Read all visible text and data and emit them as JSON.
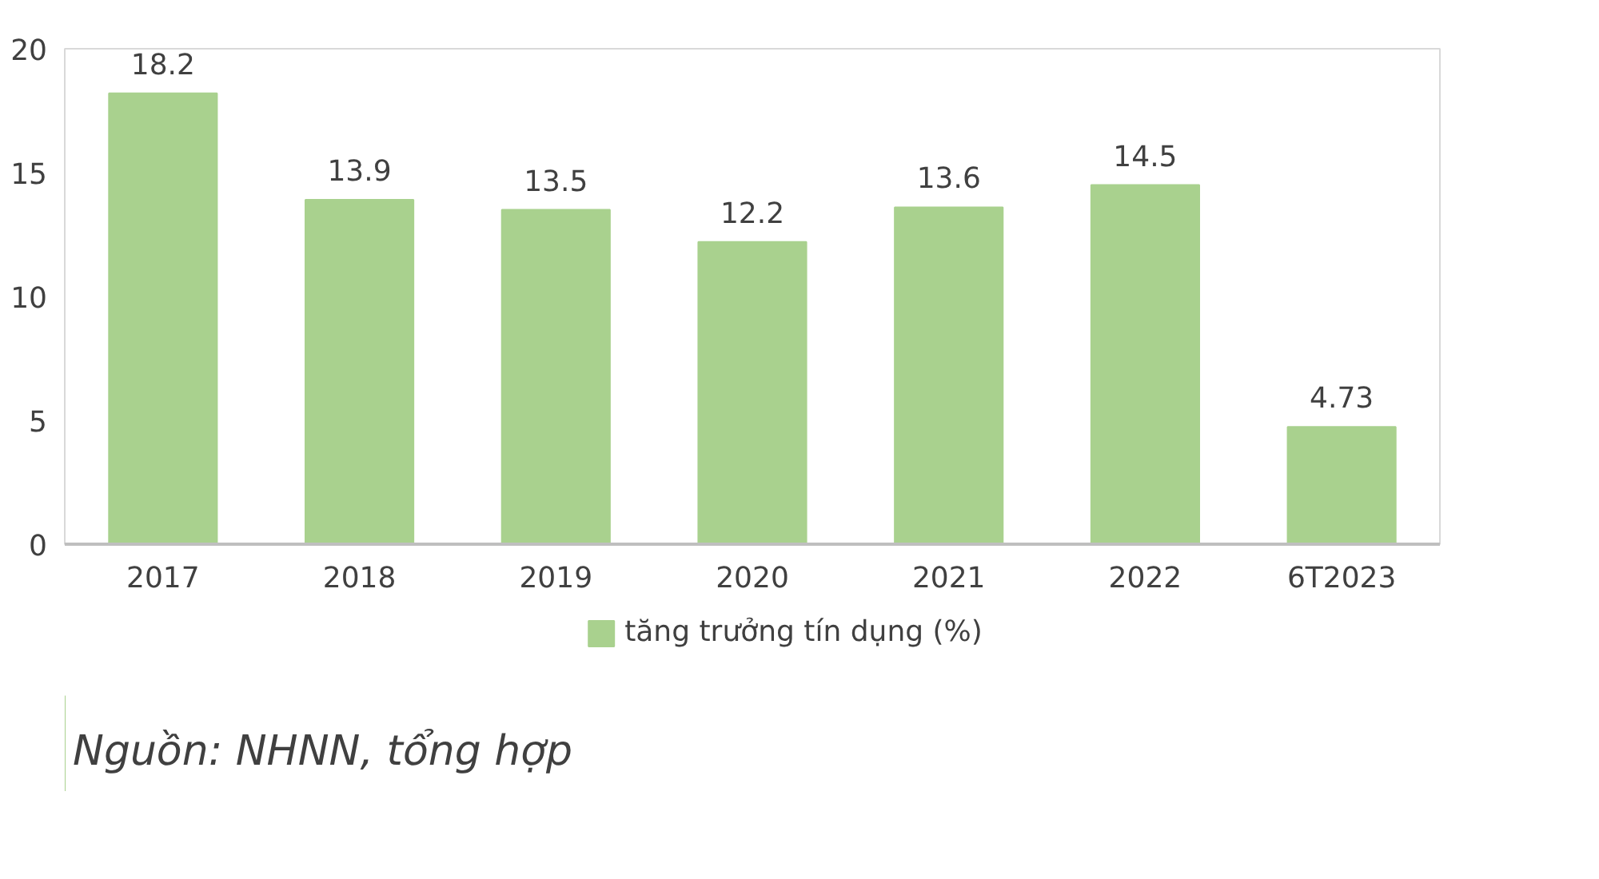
{
  "chart_data": {
    "type": "bar",
    "categories": [
      "2017",
      "2018",
      "2019",
      "2020",
      "2021",
      "2022",
      "6T2023"
    ],
    "series": [
      {
        "name": "tăng trưởng tín dụng (%)",
        "color": "#a9d18e",
        "values": [
          18.2,
          13.9,
          13.5,
          12.2,
          13.6,
          14.5,
          4.73
        ]
      }
    ],
    "ylim": [
      0,
      20
    ],
    "yticks": [
      0,
      5,
      10,
      15,
      20
    ],
    "grid": false,
    "legend": "bottom",
    "data_labels": true,
    "annotations": [
      "Nguồn: NHNN, tổng hợp"
    ]
  }
}
